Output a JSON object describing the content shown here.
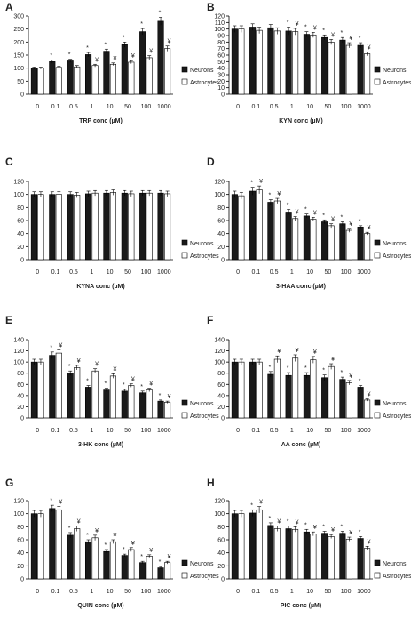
{
  "legend_labels": [
    "Neurons",
    "Astrocytes"
  ],
  "chart_data": [
    {
      "panel": "A",
      "type": "bar",
      "categories": [
        "0",
        "0.1",
        "0.5",
        "1",
        "10",
        "50",
        "100",
        "1000"
      ],
      "xlabel": "TRP conc (µM)",
      "ylim": [
        0,
        300
      ],
      "yticks": [
        0,
        50,
        100,
        150,
        200,
        250,
        300
      ],
      "series": [
        {
          "name": "Neurons",
          "values": [
            100,
            125,
            128,
            152,
            165,
            190,
            240,
            280
          ],
          "errors": [
            4,
            6,
            6,
            8,
            8,
            10,
            12,
            15
          ],
          "marks": [
            "",
            "*",
            "*",
            "*",
            "*",
            "*",
            "*",
            "*"
          ]
        },
        {
          "name": "Astrocytes",
          "values": [
            100,
            103,
            105,
            110,
            115,
            123,
            140,
            175
          ],
          "errors": [
            4,
            5,
            5,
            5,
            5,
            6,
            8,
            10
          ],
          "marks": [
            "",
            "",
            "",
            "¥",
            "¥",
            "¥",
            "¥",
            "¥"
          ]
        }
      ]
    },
    {
      "panel": "B",
      "type": "bar",
      "categories": [
        "0",
        "0.1",
        "0.5",
        "1",
        "10",
        "50",
        "100",
        "1000"
      ],
      "xlabel": "KYN conc (µM)",
      "ylim": [
        0,
        120
      ],
      "yticks": [
        0,
        10,
        20,
        30,
        40,
        50,
        60,
        70,
        80,
        90,
        100,
        110,
        120
      ],
      "series": [
        {
          "name": "Neurons",
          "values": [
            100,
            103,
            102,
            97,
            92,
            87,
            83,
            75
          ],
          "errors": [
            5,
            5,
            5,
            6,
            4,
            4,
            4,
            4
          ],
          "marks": [
            "",
            "",
            "",
            "*",
            "*",
            "*",
            "*",
            "*"
          ]
        },
        {
          "name": "Astrocytes",
          "values": [
            100,
            98,
            97,
            96,
            91,
            80,
            75,
            62
          ],
          "errors": [
            5,
            5,
            5,
            5,
            4,
            4,
            4,
            3
          ],
          "marks": [
            "",
            "",
            "",
            "¥",
            "¥",
            "¥",
            "¥",
            "¥"
          ]
        }
      ]
    },
    {
      "panel": "C",
      "type": "bar",
      "categories": [
        "0",
        "0.1",
        "0.5",
        "1",
        "10",
        "50",
        "100",
        "1000"
      ],
      "xlabel": "KYNA conc (µM)",
      "ylim": [
        0,
        120
      ],
      "yticks": [
        0,
        20,
        40,
        60,
        80,
        100,
        120
      ],
      "series": [
        {
          "name": "Neurons",
          "values": [
            100,
            100,
            100,
            101,
            102,
            102,
            102,
            102
          ],
          "errors": [
            4,
            4,
            4,
            4,
            4,
            4,
            4,
            4
          ],
          "marks": [
            "",
            "",
            "",
            "",
            "",
            "",
            "",
            ""
          ]
        },
        {
          "name": "Astrocytes",
          "values": [
            100,
            100,
            99,
            102,
            103,
            101,
            102,
            101
          ],
          "errors": [
            4,
            4,
            4,
            4,
            4,
            4,
            4,
            4
          ],
          "marks": [
            "",
            "",
            "",
            "",
            "",
            "",
            "",
            ""
          ]
        }
      ]
    },
    {
      "panel": "D",
      "type": "bar",
      "categories": [
        "0",
        "0.1",
        "0.5",
        "1",
        "10",
        "50",
        "100",
        "1000"
      ],
      "xlabel": "3-HAA conc (µM)",
      "ylim": [
        0,
        120
      ],
      "yticks": [
        0,
        20,
        40,
        60,
        80,
        100,
        120
      ],
      "series": [
        {
          "name": "Neurons",
          "values": [
            100,
            105,
            88,
            73,
            67,
            58,
            55,
            50
          ],
          "errors": [
            5,
            6,
            4,
            4,
            3,
            3,
            3,
            2
          ],
          "marks": [
            "",
            "*",
            "*",
            "*",
            "*",
            "*",
            "*",
            "*"
          ]
        },
        {
          "name": "Astrocytes",
          "values": [
            98,
            107,
            90,
            63,
            62,
            52,
            45,
            40
          ],
          "errors": [
            5,
            6,
            4,
            3,
            3,
            3,
            3,
            2
          ],
          "marks": [
            "",
            "¥",
            "¥",
            "¥",
            "¥",
            "¥",
            "¥",
            "¥"
          ]
        }
      ]
    },
    {
      "panel": "E",
      "type": "bar",
      "categories": [
        "0",
        "0.1",
        "0.5",
        "1",
        "10",
        "50",
        "100",
        "1000"
      ],
      "xlabel": "3-HK conc (µM)",
      "ylim": [
        0,
        140
      ],
      "yticks": [
        0,
        20,
        40,
        60,
        80,
        100,
        120,
        140
      ],
      "series": [
        {
          "name": "Neurons",
          "values": [
            100,
            112,
            80,
            55,
            50,
            48,
            45,
            30
          ],
          "errors": [
            5,
            6,
            4,
            3,
            3,
            3,
            3,
            2
          ],
          "marks": [
            "",
            "*",
            "*",
            "*",
            "*",
            "*",
            "*",
            "*"
          ]
        },
        {
          "name": "Astrocytes",
          "values": [
            100,
            116,
            90,
            84,
            75,
            58,
            50,
            28
          ],
          "errors": [
            5,
            6,
            4,
            4,
            4,
            3,
            3,
            2
          ],
          "marks": [
            "",
            "¥",
            "¥",
            "¥",
            "¥",
            "¥",
            "¥",
            "¥"
          ]
        }
      ]
    },
    {
      "panel": "F",
      "type": "bar",
      "categories": [
        "0",
        "0.1",
        "0.5",
        "1",
        "10",
        "50",
        "100",
        "1000"
      ],
      "xlabel": "AA conc (µM)",
      "ylim": [
        0,
        140
      ],
      "yticks": [
        0,
        20,
        40,
        60,
        80,
        100,
        120,
        140
      ],
      "series": [
        {
          "name": "Neurons",
          "values": [
            100,
            100,
            78,
            76,
            76,
            72,
            69,
            55
          ],
          "errors": [
            5,
            5,
            5,
            5,
            5,
            5,
            4,
            3
          ],
          "marks": [
            "",
            "",
            "*",
            "*",
            "*",
            "*",
            "*",
            "*"
          ]
        },
        {
          "name": "Astrocytes",
          "values": [
            100,
            100,
            105,
            107,
            104,
            92,
            63,
            32
          ],
          "errors": [
            5,
            5,
            6,
            6,
            6,
            5,
            4,
            2
          ],
          "marks": [
            "",
            "",
            "¥",
            "¥",
            "¥",
            "¥",
            "¥",
            "¥"
          ]
        }
      ]
    },
    {
      "panel": "G",
      "type": "bar",
      "categories": [
        "0",
        "0.1",
        "0.5",
        "1",
        "10",
        "50",
        "100",
        "1000"
      ],
      "xlabel": "QUIN conc (µM)",
      "ylim": [
        0,
        120
      ],
      "yticks": [
        0,
        20,
        40,
        60,
        80,
        100,
        120
      ],
      "series": [
        {
          "name": "Neurons",
          "values": [
            100,
            108,
            67,
            57,
            42,
            36,
            25,
            17
          ],
          "errors": [
            5,
            5,
            4,
            3,
            3,
            2,
            2,
            2
          ],
          "marks": [
            "",
            "*",
            "*",
            "*",
            "*",
            "*",
            "*",
            "*"
          ]
        },
        {
          "name": "Astrocytes",
          "values": [
            100,
            106,
            77,
            63,
            57,
            45,
            35,
            25
          ],
          "errors": [
            5,
            5,
            4,
            4,
            3,
            3,
            2,
            2
          ],
          "marks": [
            "",
            "¥",
            "¥",
            "¥",
            "¥",
            "¥",
            "¥",
            "¥"
          ]
        }
      ]
    },
    {
      "panel": "H",
      "type": "bar",
      "categories": [
        "0",
        "0.1",
        "0.5",
        "1",
        "10",
        "50",
        "100",
        "1000"
      ],
      "xlabel": "PIC conc (µM)",
      "ylim": [
        0,
        120
      ],
      "yticks": [
        0,
        20,
        40,
        60,
        80,
        100,
        120
      ],
      "series": [
        {
          "name": "Neurons",
          "values": [
            100,
            101,
            82,
            77,
            72,
            70,
            70,
            62
          ],
          "errors": [
            5,
            5,
            4,
            4,
            4,
            3,
            3,
            3
          ],
          "marks": [
            "",
            "*",
            "*",
            "*",
            "*",
            "*",
            "*",
            "*"
          ]
        },
        {
          "name": "Astrocytes",
          "values": [
            100,
            106,
            77,
            76,
            69,
            65,
            61,
            47
          ],
          "errors": [
            5,
            5,
            4,
            4,
            3,
            3,
            3,
            3
          ],
          "marks": [
            "",
            "¥",
            "¥",
            "¥",
            "¥",
            "¥",
            "¥",
            "¥"
          ]
        }
      ]
    }
  ]
}
